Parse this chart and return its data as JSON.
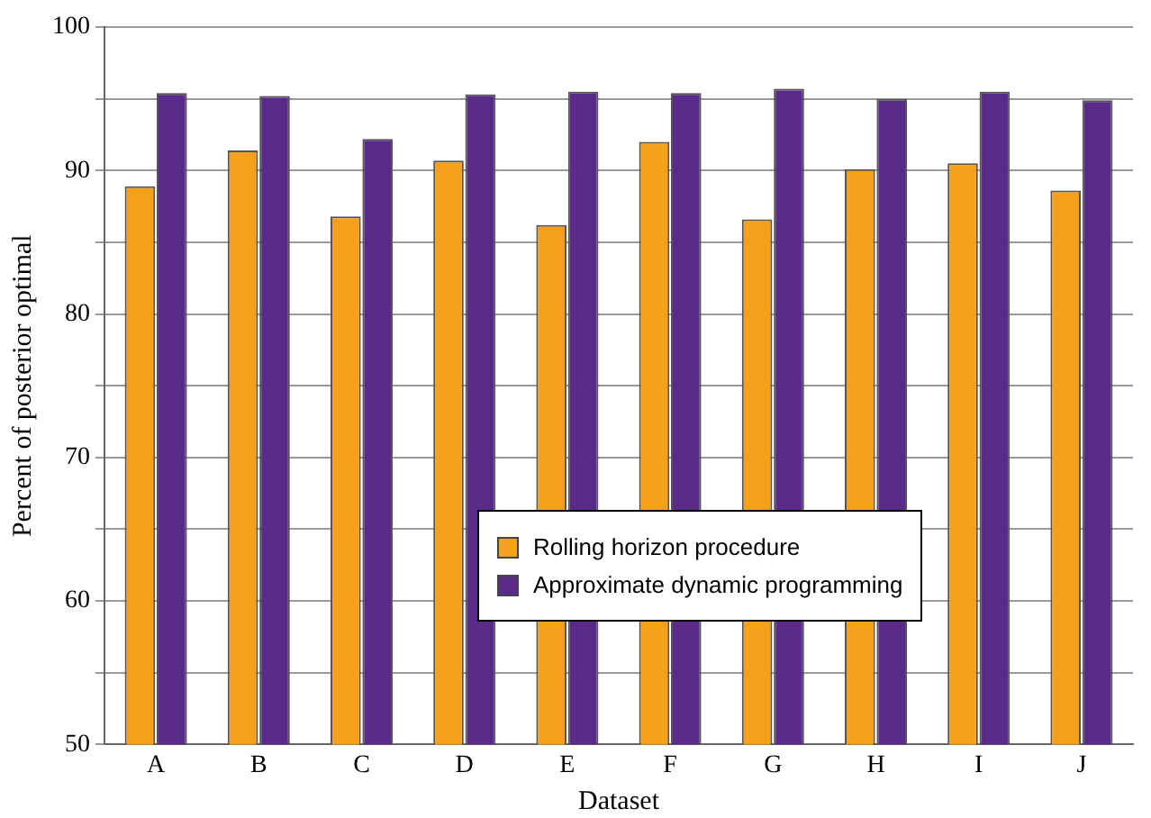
{
  "chart_data": {
    "type": "bar",
    "xlabel": "Dataset",
    "ylabel": "Percent of posterior optimal",
    "categories": [
      "A",
      "B",
      "C",
      "D",
      "E",
      "F",
      "G",
      "H",
      "I",
      "J"
    ],
    "series": [
      {
        "name": "Rolling horizon procedure",
        "color": "#f5a01a",
        "values": [
          88.9,
          91.4,
          86.8,
          90.7,
          86.2,
          92.0,
          86.6,
          90.1,
          90.5,
          88.6
        ]
      },
      {
        "name": "Approximate dynamic programming",
        "color": "#5a2a8a",
        "values": [
          95.4,
          95.2,
          92.2,
          95.3,
          95.5,
          95.4,
          95.7,
          95.0,
          95.5,
          94.9
        ]
      }
    ],
    "ylim": [
      50,
      100
    ],
    "yticks": [
      50,
      {
        "value": 55,
        "label": null
      },
      60,
      {
        "value": 65,
        "label": null
      },
      70,
      {
        "value": 75,
        "label": null
      },
      80,
      {
        "value": 85,
        "label": null
      },
      90,
      {
        "value": 95,
        "label": null
      },
      100
    ],
    "grid": "y",
    "legend": "bottom right"
  }
}
